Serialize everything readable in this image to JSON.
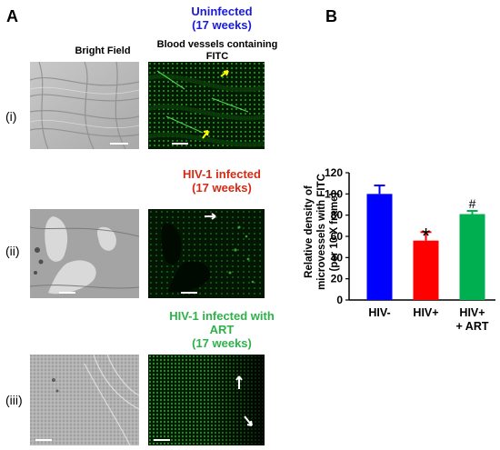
{
  "panel_a": {
    "letter": "A",
    "columns": {
      "bright_field": "Bright Field",
      "fitc_line1": "Blood vessels containing",
      "fitc_line2": "FITC"
    },
    "rows": [
      {
        "label": "(i)",
        "title_line1": "Uninfected",
        "title_line2": "(17 weeks)",
        "title_color": "#1a1adc"
      },
      {
        "label": "(ii)",
        "title_line1": "HIV-1 infected",
        "title_line2": "(17 weeks)",
        "title_color": "#d42a14"
      },
      {
        "label": "(iii)",
        "title_line1": "HIV-1 infected with",
        "title_line2": "ART",
        "title_line3": "(17 weeks)",
        "title_color": "#2db24a"
      }
    ]
  },
  "panel_b": {
    "letter": "B",
    "chart_data": {
      "type": "bar",
      "ylabel_lines": [
        "Relative density of",
        "microvessels with FITC",
        "(per 10 X frame)"
      ],
      "ylim": [
        0,
        120
      ],
      "yticks": [
        0,
        20,
        40,
        60,
        80,
        100,
        120
      ],
      "categories": [
        "HIV-",
        "HIV+",
        "HIV+"
      ],
      "category_sub": [
        "",
        "",
        "+ ART"
      ],
      "values": [
        100,
        56,
        81
      ],
      "errors": [
        8,
        8,
        3
      ],
      "colors": [
        "#0000ff",
        "#ff0000",
        "#00b050"
      ],
      "annotations": [
        "",
        "*",
        "#"
      ]
    }
  }
}
